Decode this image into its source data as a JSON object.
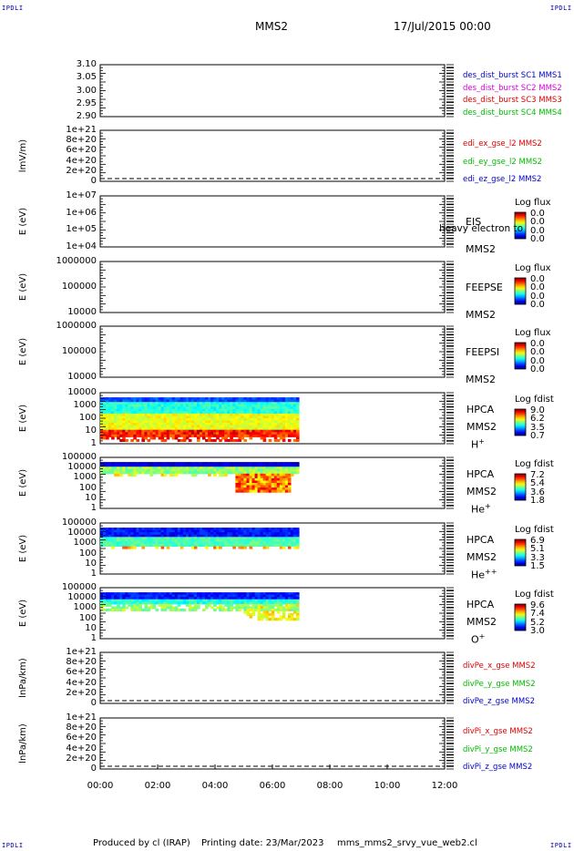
{
  "corners": {
    "text": "IPDLI"
  },
  "header": {
    "spacecraft": "MMS2",
    "date": "17/Jul/2015 00:00"
  },
  "footer": {
    "produced": "Produced by cl (IRAP)",
    "printing": "Printing date: 23/Mar/2023",
    "file": "mms_mms2_srvy_vue_web2.cl"
  },
  "colors": {
    "red": "#dd0000",
    "magenta": "#dd00dd",
    "green": "#00bb00",
    "blue": "#0000cc"
  },
  "chart_data": [
    {
      "id": "panel1",
      "type": "line",
      "ylabel": "",
      "ylim": [
        2.9,
        3.1
      ],
      "yticks": [
        "3.10",
        "3.05",
        "3.00",
        "2.95",
        "2.90"
      ],
      "legend": [
        {
          "label": "des_dist_burst SC1 MMS1",
          "color": "#0000cc"
        },
        {
          "label": "des_dist_burst SC2 MMS2",
          "color": "#dd00dd"
        },
        {
          "label": "des_dist_burst SC3 MMS3",
          "color": "#dd0000"
        },
        {
          "label": "des_dist_burst SC4 MMS4",
          "color": "#00bb00"
        }
      ]
    },
    {
      "id": "panel2",
      "type": "line",
      "ylabel": "lmV/m)",
      "ylim": [
        0,
        1e+21
      ],
      "yticks": [
        "1e+21",
        "8e+20",
        "6e+20",
        "4e+20",
        "2e+20",
        "0"
      ],
      "legend": [
        {
          "label": "edi_ex_gse_l2 MMS2",
          "color": "#dd0000"
        },
        {
          "label": "edi_ey_gse_l2 MMS2",
          "color": "#00bb00"
        },
        {
          "label": "edi_ez_gse_l2 MMS2",
          "color": "#0000cc"
        }
      ]
    },
    {
      "id": "panel3",
      "type": "heatmap",
      "ylabel": "E (eV)",
      "yticks": [
        "1e+07",
        "1e+06",
        "1e+05",
        "1e+04"
      ],
      "labels": [
        "EIS",
        "MMS2"
      ],
      "overlay": "heavy electron to",
      "colorbar": {
        "title": "Log flux",
        "ticks": [
          "0.0",
          "0.0",
          "0.0",
          "0.0"
        ]
      }
    },
    {
      "id": "panel4",
      "type": "heatmap",
      "ylabel": "E (eV)",
      "yticks": [
        "1000000",
        "100000",
        "10000"
      ],
      "labels": [
        "FEEPSE",
        "MMS2"
      ],
      "colorbar": {
        "title": "Log flux",
        "ticks": [
          "0.0",
          "0.0",
          "0.0",
          "0.0"
        ]
      }
    },
    {
      "id": "panel5",
      "type": "heatmap",
      "ylabel": "E (eV)",
      "yticks": [
        "1000000",
        "100000",
        "10000"
      ],
      "labels": [
        "FEEPSI",
        "MMS2"
      ],
      "colorbar": {
        "title": "Log flux",
        "ticks": [
          "0.0",
          "0.0",
          "0.0",
          "0.0"
        ]
      }
    },
    {
      "id": "panel6",
      "type": "heatmap",
      "ylabel": "E (eV)",
      "yticks": [
        "10000",
        "1000",
        "100",
        "10",
        "1"
      ],
      "labels": [
        "HPCA",
        "MMS2"
      ],
      "species": "H",
      "species_sup": "+",
      "colorbar": {
        "title": "Log fdist",
        "ticks": [
          "9.0",
          "6.2",
          "3.5",
          "0.7"
        ]
      }
    },
    {
      "id": "panel7",
      "type": "heatmap",
      "ylabel": "E (eV)",
      "yticks": [
        "100000",
        "10000",
        "1000",
        "100",
        "10",
        "1"
      ],
      "labels": [
        "HPCA",
        "MMS2"
      ],
      "species": "He",
      "species_sup": "+",
      "colorbar": {
        "title": "Log fdist",
        "ticks": [
          "7.2",
          "5.4",
          "3.6",
          "1.8"
        ]
      }
    },
    {
      "id": "panel8",
      "type": "heatmap",
      "ylabel": "E (eV)",
      "yticks": [
        "100000",
        "10000",
        "1000",
        "100",
        "10",
        "1"
      ],
      "labels": [
        "HPCA",
        "MMS2"
      ],
      "species": "He",
      "species_sup": "++",
      "colorbar": {
        "title": "Log fdist",
        "ticks": [
          "6.9",
          "5.1",
          "3.3",
          "1.5"
        ]
      }
    },
    {
      "id": "panel9",
      "type": "heatmap",
      "ylabel": "E (eV)",
      "yticks": [
        "100000",
        "10000",
        "1000",
        "100",
        "10",
        "1"
      ],
      "labels": [
        "HPCA",
        "MMS2"
      ],
      "species": "O",
      "species_sup": "+",
      "colorbar": {
        "title": "Log fdist",
        "ticks": [
          "9.6",
          "7.4",
          "5.2",
          "3.0"
        ]
      }
    },
    {
      "id": "panel10",
      "type": "line",
      "ylabel": "lnPa/km)",
      "ylim": [
        0,
        1e+21
      ],
      "yticks": [
        "1e+21",
        "8e+20",
        "6e+20",
        "4e+20",
        "2e+20",
        "0"
      ],
      "legend": [
        {
          "label": "divPe_x_gse MMS2",
          "color": "#dd0000"
        },
        {
          "label": "divPe_y_gse MMS2",
          "color": "#00bb00"
        },
        {
          "label": "divPe_z_gse MMS2",
          "color": "#0000cc"
        }
      ]
    },
    {
      "id": "panel11",
      "type": "line",
      "ylabel": "lnPa/km)",
      "ylim": [
        0,
        1e+21
      ],
      "yticks": [
        "1e+21",
        "8e+20",
        "6e+20",
        "4e+20",
        "2e+20",
        "0"
      ],
      "legend": [
        {
          "label": "divPi_x_gse MMS2",
          "color": "#dd0000"
        },
        {
          "label": "divPi_y_gse MMS2",
          "color": "#00bb00"
        },
        {
          "label": "divPi_z_gse MMS2",
          "color": "#0000cc"
        }
      ]
    }
  ],
  "xaxis": {
    "ticks": [
      "00:00",
      "02:00",
      "04:00",
      "06:00",
      "08:00",
      "10:00",
      "12:00"
    ],
    "range_hours": [
      0,
      12
    ]
  }
}
